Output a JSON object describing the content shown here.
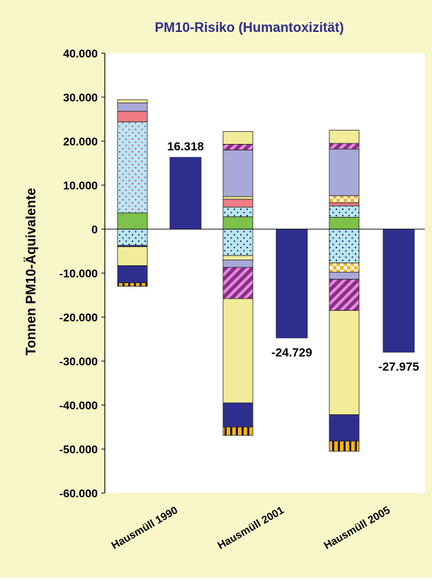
{
  "chart_data": {
    "type": "bar",
    "title": "PM10-Risiko (Humantoxizität)",
    "xlabel": "",
    "ylabel": "Tonnen PM10-Äquivalente",
    "ylim": [
      -60000,
      40000
    ],
    "yticks": [
      40000,
      30000,
      20000,
      10000,
      0,
      -10000,
      -20000,
      -30000,
      -40000,
      -50000,
      -60000
    ],
    "ytick_labels": [
      "40.000",
      "30.000",
      "20.000",
      "10.000",
      "0",
      "-10.000",
      "-20.000",
      "-30.000",
      "-40.000",
      "-50.000",
      "-60.000"
    ],
    "categories": [
      "Hausmüll 1990",
      "Hausmüll 2001",
      "Hausmüll 2005"
    ],
    "grid": false,
    "legend": "none",
    "colors": {
      "background": "#f9f6c9",
      "title": "#2f2f8c",
      "net_bar": "#2e2e8f",
      "light_yellow": "#f2ec9a",
      "lavender": "#a9a9d9",
      "pink": "#f07c86",
      "light_cyan": "#b9e7ef",
      "green": "#7dc24a",
      "purple": "#8a2f8a",
      "orange": "#f5b41e"
    },
    "stacks": [
      {
        "category": "Hausmüll 1990",
        "segments": [
          {
            "y0": 0,
            "y1": 3700,
            "color": "#7dc24a",
            "pattern": "none"
          },
          {
            "y0": 3700,
            "y1": 24400,
            "color": "#b9e7ef",
            "pattern": "dots-pink"
          },
          {
            "y0": 24400,
            "y1": 26800,
            "color": "#f07c86",
            "pattern": "none"
          },
          {
            "y0": 26800,
            "y1": 28700,
            "color": "#a9a9d9",
            "pattern": "none"
          },
          {
            "y0": 28700,
            "y1": 29400,
            "color": "#f2ec9a",
            "pattern": "none"
          },
          {
            "y0": 0,
            "y1": -3700,
            "color": "#b9e7ef",
            "pattern": "dots-navy"
          },
          {
            "y0": -3700,
            "y1": -4000,
            "color": "#2e2e8f",
            "pattern": "none"
          },
          {
            "y0": -4000,
            "y1": -8300,
            "color": "#f2ec9a",
            "pattern": "none"
          },
          {
            "y0": -8300,
            "y1": -12200,
            "color": "#2e2e8f",
            "pattern": "none"
          },
          {
            "y0": -12200,
            "y1": -13000,
            "color": "#f5b41e",
            "pattern": "vstripes"
          }
        ]
      },
      {
        "category": "Hausmüll 2001",
        "segments": [
          {
            "y0": 0,
            "y1": 2800,
            "color": "#7dc24a",
            "pattern": "none"
          },
          {
            "y0": 2800,
            "y1": 5000,
            "color": "#b9e7ef",
            "pattern": "dots-navy"
          },
          {
            "y0": 5000,
            "y1": 6800,
            "color": "#f07c86",
            "pattern": "none"
          },
          {
            "y0": 6800,
            "y1": 7400,
            "color": "#f2ec9a",
            "pattern": "none"
          },
          {
            "y0": 7400,
            "y1": 18000,
            "color": "#a9a9d9",
            "pattern": "none"
          },
          {
            "y0": 18000,
            "y1": 19300,
            "color": "#8a2f8a",
            "pattern": "diag"
          },
          {
            "y0": 19300,
            "y1": 22200,
            "color": "#f2ec9a",
            "pattern": "none"
          },
          {
            "y0": 0,
            "y1": -6000,
            "color": "#b9e7ef",
            "pattern": "dots-navy"
          },
          {
            "y0": -6000,
            "y1": -7000,
            "color": "#f2ec9a",
            "pattern": "none"
          },
          {
            "y0": -7000,
            "y1": -8700,
            "color": "#a9a9d9",
            "pattern": "none"
          },
          {
            "y0": -8700,
            "y1": -15800,
            "color": "#8a2f8a",
            "pattern": "diag"
          },
          {
            "y0": -15800,
            "y1": -39500,
            "color": "#f2ec9a",
            "pattern": "none"
          },
          {
            "y0": -39500,
            "y1": -45000,
            "color": "#2e2e8f",
            "pattern": "none"
          },
          {
            "y0": -45000,
            "y1": -46900,
            "color": "#f5b41e",
            "pattern": "vstripes"
          }
        ]
      },
      {
        "category": "Hausmüll 2005",
        "segments": [
          {
            "y0": 0,
            "y1": 2700,
            "color": "#7dc24a",
            "pattern": "none"
          },
          {
            "y0": 2700,
            "y1": 5300,
            "color": "#b9e7ef",
            "pattern": "dots-navy"
          },
          {
            "y0": 5300,
            "y1": 6000,
            "color": "#f07c86",
            "pattern": "none"
          },
          {
            "y0": 6000,
            "y1": 7600,
            "color": "#f5b41e",
            "pattern": "checker"
          },
          {
            "y0": 7600,
            "y1": 18200,
            "color": "#a9a9d9",
            "pattern": "none"
          },
          {
            "y0": 18200,
            "y1": 19500,
            "color": "#8a2f8a",
            "pattern": "diag"
          },
          {
            "y0": 19500,
            "y1": 22500,
            "color": "#f2ec9a",
            "pattern": "none"
          },
          {
            "y0": 0,
            "y1": -7700,
            "color": "#b9e7ef",
            "pattern": "dots-navy"
          },
          {
            "y0": -7700,
            "y1": -9800,
            "color": "#f5b41e",
            "pattern": "checker"
          },
          {
            "y0": -9800,
            "y1": -11400,
            "color": "#a9a9d9",
            "pattern": "none"
          },
          {
            "y0": -11400,
            "y1": -18500,
            "color": "#8a2f8a",
            "pattern": "diag"
          },
          {
            "y0": -18500,
            "y1": -42200,
            "color": "#f2ec9a",
            "pattern": "none"
          },
          {
            "y0": -42200,
            "y1": -48200,
            "color": "#2e2e8f",
            "pattern": "none"
          },
          {
            "y0": -48200,
            "y1": -50500,
            "color": "#f5b41e",
            "pattern": "vstripes"
          }
        ]
      }
    ],
    "net_values": [
      {
        "category": "Hausmüll 1990",
        "value": 16318,
        "label": "16.318"
      },
      {
        "category": "Hausmüll 2001",
        "value": -24729,
        "label": "-24.729"
      },
      {
        "category": "Hausmüll 2005",
        "value": -27975,
        "label": "-27.975"
      }
    ]
  }
}
